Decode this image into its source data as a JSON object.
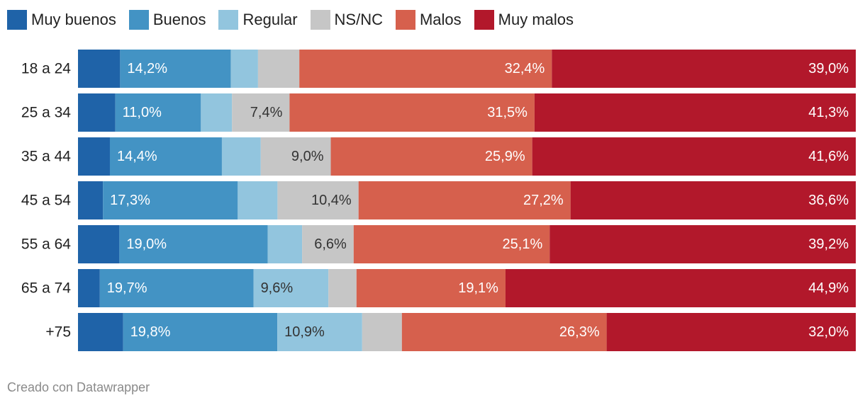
{
  "chart_data": {
    "type": "bar",
    "orientation": "horizontal",
    "stacked": true,
    "normalized": true,
    "categories": [
      "18 a 24",
      "25 a 34",
      "35 a 44",
      "45 a 54",
      "55 a 64",
      "65 a 74",
      "+75"
    ],
    "series": [
      {
        "name": "Muy buenos",
        "color": "#1f63a8",
        "text_color": "#ffffff",
        "values": [
          5.4,
          4.8,
          4.1,
          3.2,
          5.3,
          2.8,
          5.8
        ],
        "labels": [
          "",
          "",
          "",
          "",
          "",
          "",
          ""
        ]
      },
      {
        "name": "Buenos",
        "color": "#4393c4",
        "text_color": "#ffffff",
        "values": [
          14.2,
          11.0,
          14.4,
          17.3,
          19.0,
          19.7,
          19.8
        ],
        "labels": [
          "14,2%",
          "11,0%",
          "14,4%",
          "17,3%",
          "19,0%",
          "19,7%",
          "19,8%"
        ]
      },
      {
        "name": "Regular",
        "color": "#92c5de",
        "text_color": "#333333",
        "values": [
          3.5,
          4.0,
          5.0,
          5.1,
          4.4,
          9.6,
          10.9
        ],
        "labels": [
          "",
          "",
          "",
          "",
          "",
          "9,6%",
          "10,9%"
        ]
      },
      {
        "name": "NS/NC",
        "color": "#c6c6c6",
        "text_color": "#333333",
        "values": [
          5.3,
          7.4,
          9.0,
          10.4,
          6.6,
          3.6,
          5.1
        ],
        "labels": [
          "",
          "7,4%",
          "9,0%",
          "10,4%",
          "6,6%",
          "",
          ""
        ]
      },
      {
        "name": "Malos",
        "color": "#d6604d",
        "text_color": "#ffffff",
        "values": [
          32.4,
          31.5,
          25.9,
          27.2,
          25.1,
          19.1,
          26.3
        ],
        "labels": [
          "32,4%",
          "31,5%",
          "25,9%",
          "27,2%",
          "25,1%",
          "19,1%",
          "26,3%"
        ]
      },
      {
        "name": "Muy malos",
        "color": "#b2182b",
        "text_color": "#ffffff",
        "values": [
          39.0,
          41.3,
          41.6,
          36.6,
          39.2,
          44.9,
          32.0
        ],
        "labels": [
          "39,0%",
          "41,3%",
          "41,6%",
          "36,6%",
          "39,2%",
          "44,9%",
          "32,0%"
        ]
      }
    ],
    "legend_position": "top-left",
    "grid": false
  },
  "footer": {
    "credit": "Creado con Datawrapper"
  }
}
